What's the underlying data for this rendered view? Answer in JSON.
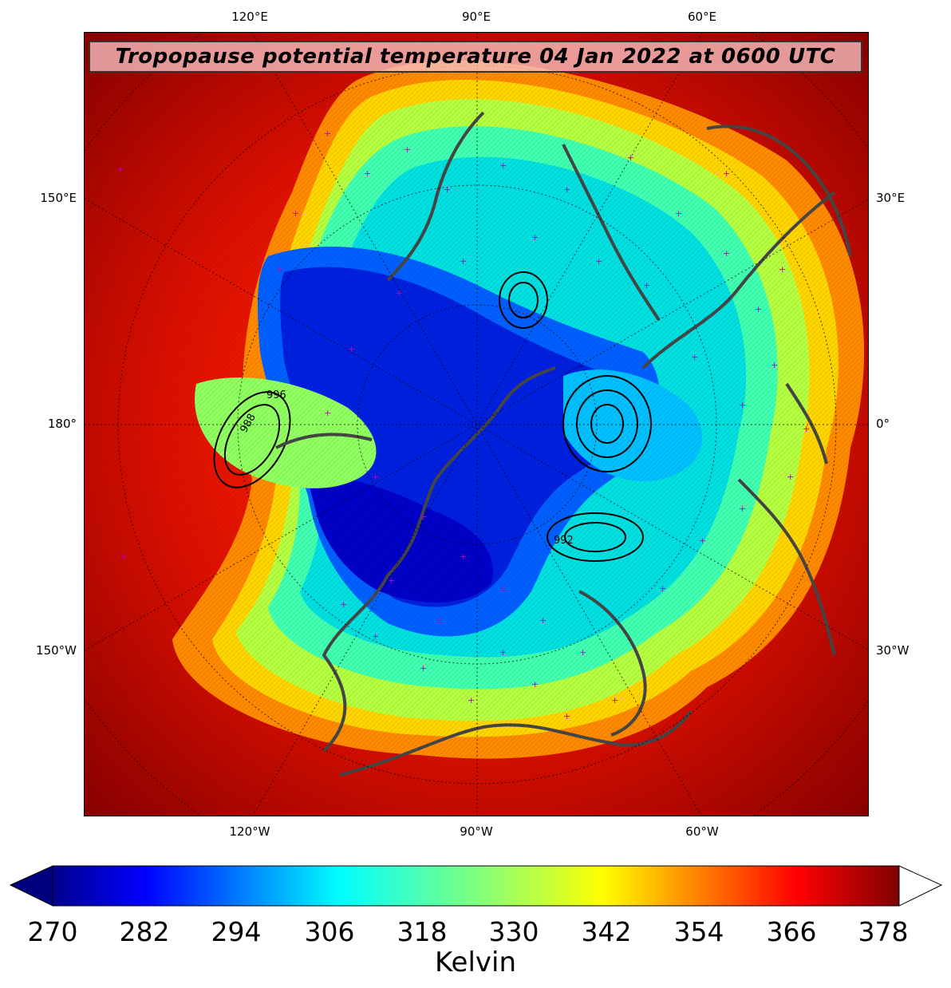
{
  "title": "Tropopause potential temperature 04 Jan 2022 at 0600 UTC",
  "longitude_labels": {
    "top": [
      "120°E",
      "90°E",
      "60°E"
    ],
    "bottom": [
      "120°W",
      "90°W",
      "60°W"
    ],
    "left": [
      "150°E",
      "180°",
      "150°W"
    ],
    "right": [
      "30°E",
      "0°",
      "30°W"
    ]
  },
  "colorbar": {
    "ticks": [
      "270",
      "282",
      "294",
      "306",
      "318",
      "330",
      "342",
      "354",
      "366",
      "378"
    ],
    "label": "Kelvin",
    "min": 270,
    "max": 378,
    "extend_low_color": "#00007f",
    "extend_high_color": "#ffffff"
  },
  "contour_labels": [
    "988",
    "992",
    "996"
  ],
  "colors": {
    "background_hot": "#8b0000",
    "cold_core": "#0000c8",
    "coastline": "#404040",
    "station_marker": "#c000c0"
  }
}
